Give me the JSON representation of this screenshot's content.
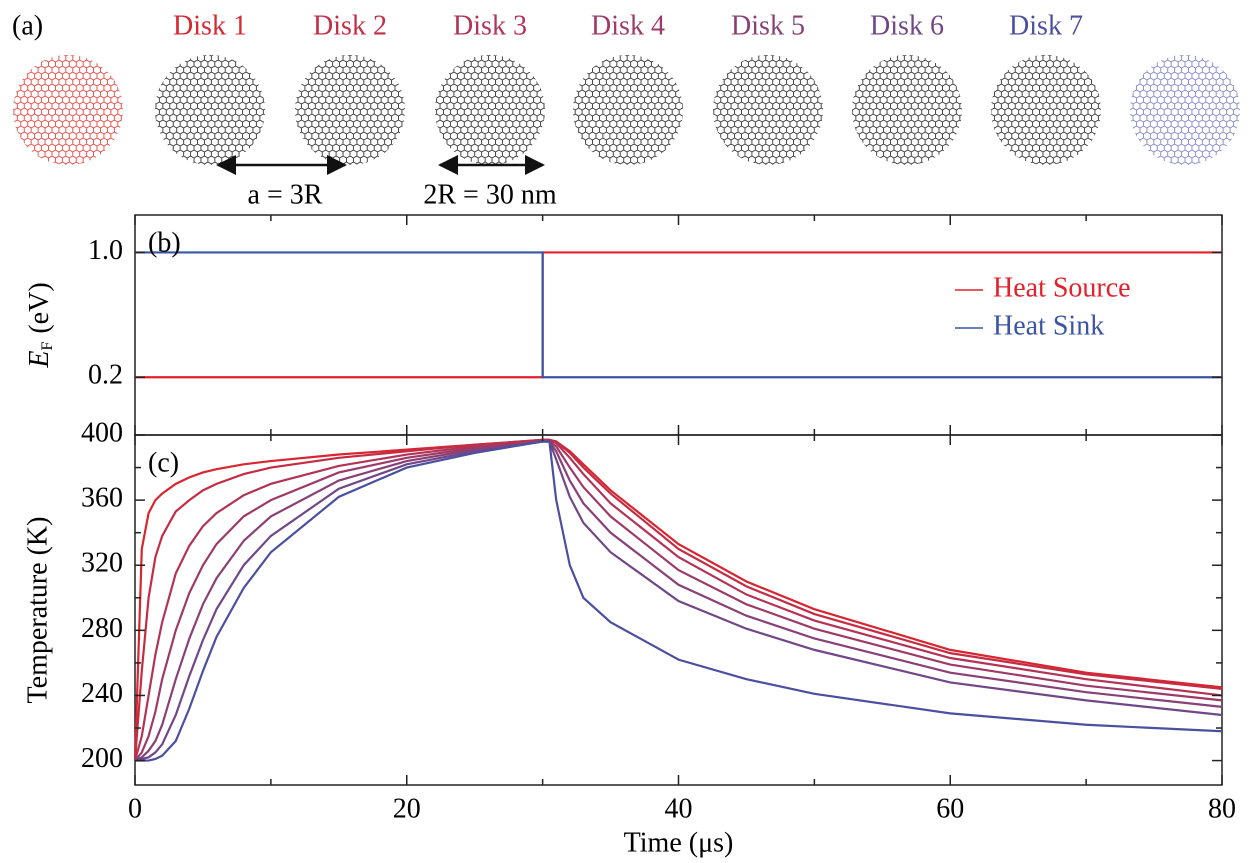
{
  "figure_a": {
    "panel_label": "(a)",
    "spacing_label": "a = 3R",
    "diameter_label": "2R = 30 nm"
  },
  "chart_data": [
    {
      "type": "line",
      "panel_label": "(b)",
      "ylabel_symbol": "E",
      "ylabel_subscript": "F",
      "ylabel_unit": "(eV)",
      "x": [
        0,
        30,
        30,
        80
      ],
      "series": [
        {
          "name": "Heat Source",
          "color": "#e3202b",
          "values": [
            0.2,
            0.2,
            1.0,
            1.0
          ]
        },
        {
          "name": "Heat Sink",
          "color": "#3a55a4",
          "values": [
            1.0,
            1.0,
            0.2,
            0.2
          ]
        }
      ],
      "xlim": [
        0,
        80
      ],
      "xticks": [
        0,
        20,
        40,
        60,
        80
      ],
      "xminor": [
        10,
        30,
        50,
        70
      ],
      "ylim": [
        -0.17,
        1.24
      ],
      "yticks": [
        0.2,
        {
          "value": 1.0,
          "label": "1.0"
        }
      ],
      "legend": "upper right"
    },
    {
      "type": "line",
      "panel_label": "(c)",
      "xlabel": "Time (μs)",
      "ylabel": "Temperature (K)",
      "x": [
        0,
        0.5,
        1,
        1.5,
        2,
        3,
        4,
        5,
        6,
        8,
        10,
        15,
        20,
        25,
        30,
        30.5,
        31,
        32,
        33,
        35,
        40,
        45,
        50,
        60,
        70,
        80
      ],
      "series": [
        {
          "name": "Disk 1",
          "color": "#d7262f",
          "values": [
            200,
            330,
            352,
            360,
            364,
            370,
            374,
            377,
            379,
            382,
            384,
            388,
            391,
            394,
            397,
            397,
            396,
            390,
            382,
            366,
            333,
            310,
            293,
            268,
            254,
            245
          ]
        },
        {
          "name": "Disk 2",
          "color": "#c52c44",
          "values": [
            200,
            255,
            300,
            325,
            338,
            353,
            360,
            366,
            370,
            376,
            380,
            386,
            390,
            394,
            397,
            397,
            396,
            389,
            380,
            364,
            330,
            307,
            290,
            266,
            253,
            244
          ]
        },
        {
          "name": "Disk 3",
          "color": "#b23356",
          "values": [
            200,
            215,
            240,
            265,
            285,
            315,
            332,
            344,
            352,
            363,
            370,
            381,
            388,
            393,
            397,
            397,
            395,
            386,
            376,
            358,
            325,
            302,
            286,
            263,
            250,
            240
          ]
        },
        {
          "name": "Disk 4",
          "color": "#9d3a67",
          "values": [
            200,
            205,
            215,
            230,
            250,
            280,
            303,
            320,
            333,
            350,
            360,
            377,
            386,
            392,
            396,
            396,
            393,
            380,
            368,
            350,
            317,
            296,
            281,
            259,
            246,
            237
          ]
        },
        {
          "name": "Disk 5",
          "color": "#884077",
          "values": [
            200,
            202,
            206,
            212,
            222,
            250,
            275,
            296,
            312,
            335,
            350,
            372,
            384,
            391,
            396,
            396,
            390,
            372,
            358,
            340,
            308,
            289,
            275,
            254,
            242,
            233
          ]
        },
        {
          "name": "Disk 6",
          "color": "#714787",
          "values": [
            200,
            201,
            202,
            205,
            210,
            228,
            252,
            274,
            293,
            320,
            338,
            367,
            382,
            390,
            396,
            396,
            385,
            362,
            346,
            328,
            298,
            281,
            268,
            248,
            237,
            228
          ]
        },
        {
          "name": "Disk 7",
          "color": "#4b4f9f",
          "values": [
            200,
            200,
            200,
            201,
            203,
            212,
            232,
            255,
            276,
            306,
            328,
            362,
            380,
            389,
            396,
            396,
            360,
            320,
            300,
            285,
            262,
            250,
            241,
            229,
            222,
            218
          ]
        }
      ],
      "xlim": [
        0,
        80
      ],
      "xticks": [
        0,
        20,
        40,
        60,
        80
      ],
      "xminor": [
        10,
        30,
        50,
        70
      ],
      "ylim": [
        185,
        400
      ],
      "yticks": [
        200,
        240,
        280,
        320,
        360,
        400
      ],
      "yminor": [
        220,
        260,
        300,
        340,
        380
      ]
    }
  ]
}
